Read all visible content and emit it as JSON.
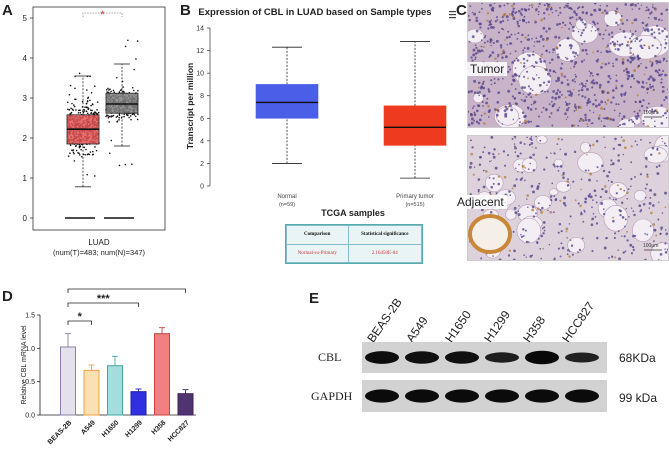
{
  "panels": {
    "a": "A",
    "b": "B",
    "c": "C",
    "d": "D",
    "e": "E"
  },
  "chart_data": [
    {
      "id": "A",
      "type": "box",
      "title": "",
      "xlabel": "LUAD",
      "xsublabel": "(num(T)=483; num(N)=347)",
      "ylabel": "",
      "ylim": [
        0,
        5.3
      ],
      "yticks": [
        0,
        1,
        2,
        3,
        4,
        5
      ],
      "grid": false,
      "significance": "*",
      "series": [
        {
          "group": "T",
          "color": "#e25555",
          "q1": 1.85,
          "median": 2.22,
          "q3": 2.58,
          "whisker_low": 0.78,
          "whisker_high": 3.55,
          "n_points": 483
        },
        {
          "group": "N",
          "color": "#808080",
          "q1": 2.62,
          "median": 2.85,
          "q3": 3.12,
          "whisker_low": 1.8,
          "whisker_high": 3.85,
          "n_points": 347
        }
      ]
    },
    {
      "id": "B",
      "type": "box",
      "title": "Expression of CBL in LUAD based on Sample types",
      "xlabel": "",
      "ylabel": "Transcript per million",
      "ylim": [
        0,
        14
      ],
      "yticks": [
        0,
        2,
        4,
        6,
        8,
        10,
        12,
        14
      ],
      "categories": [
        "Normal",
        "Primary tumor"
      ],
      "category_sublabels": [
        "(n=59)",
        "(n=515)"
      ],
      "series": [
        {
          "group": "Normal",
          "color": "#4a5ee8",
          "q1": 6.0,
          "median": 7.4,
          "q3": 9.0,
          "whisker_low": 2.0,
          "whisker_high": 12.3
        },
        {
          "group": "Primary tumor",
          "color": "#ee3a1e",
          "q1": 3.6,
          "median": 5.2,
          "q3": 7.1,
          "whisker_low": 0.7,
          "whisker_high": 12.8
        }
      ],
      "menu_icon": "hamburger-menu-icon"
    },
    {
      "id": "D",
      "type": "bar",
      "title": "",
      "xlabel": "",
      "ylabel": "Relative CBL mRNA level",
      "ylim": [
        0,
        1.5
      ],
      "yticks": [
        "0.0",
        "0.5",
        "1.0",
        "1.5"
      ],
      "categories": [
        "BEAS-2B",
        "A549",
        "H1650",
        "H1299",
        "H358",
        "HCC827"
      ],
      "values": [
        1.02,
        0.67,
        0.74,
        0.35,
        1.22,
        0.32
      ],
      "errors": [
        0.2,
        0.08,
        0.14,
        0.04,
        0.09,
        0.06
      ],
      "fills": [
        "#e4e0ec",
        "#fbe0b6",
        "#a5dcdc",
        "#3030e0",
        "#f28080",
        "#503470"
      ],
      "edges": [
        "#8a80a8",
        "#f0a040",
        "#40a8a8",
        "#2020a0",
        "#d04040",
        "#402060"
      ],
      "significance": [
        {
          "from": 0,
          "to": 1,
          "label": "*"
        },
        {
          "from": 0,
          "to": 3,
          "label": "***"
        },
        {
          "from": 0,
          "to": 5,
          "label": "***"
        }
      ]
    }
  ],
  "tcga": {
    "title": "TCGA samples",
    "header": [
      "Comparison",
      "Statistical significance"
    ],
    "row": [
      "Normal-vs-Primary",
      "2.16450E-04"
    ]
  },
  "ihc": {
    "tumor_label": "Tumor",
    "adjacent_label": "Adjacent",
    "scale_bar": "100μm"
  },
  "western": {
    "cell_lines": [
      "BEAS-2B",
      "A549",
      "H1650",
      "H1299",
      "H358",
      "HCC827"
    ],
    "rows": [
      {
        "label": "CBL",
        "size": "68KDa",
        "intensities": [
          0.85,
          0.8,
          0.8,
          0.55,
          0.95,
          0.5
        ]
      },
      {
        "label": "GAPDH",
        "size": "99 kDa",
        "intensities": [
          0.9,
          0.9,
          0.9,
          0.9,
          0.9,
          0.9
        ]
      }
    ]
  }
}
